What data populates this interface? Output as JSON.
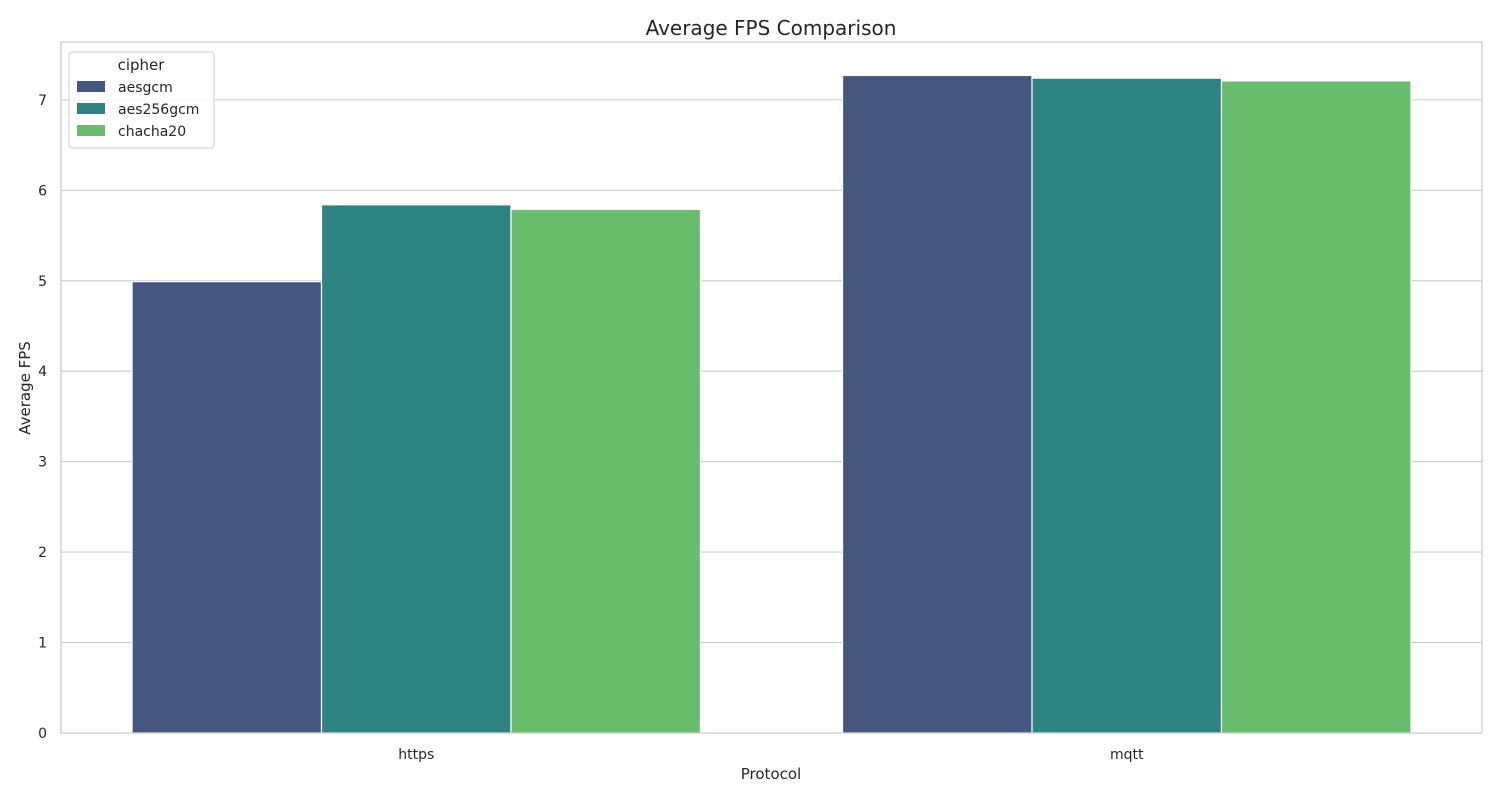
{
  "chart_data": {
    "type": "bar",
    "title": "Average FPS Comparison",
    "xlabel": "Protocol",
    "ylabel": "Average FPS",
    "categories": [
      "https",
      "mqtt"
    ],
    "series": [
      {
        "name": "aesgcm",
        "values": [
          4.99,
          7.27
        ],
        "color": "#45577f"
      },
      {
        "name": "aes256gcm",
        "values": [
          5.84,
          7.24
        ],
        "color": "#2d837f"
      },
      {
        "name": "chacha20",
        "values": [
          5.79,
          7.21
        ],
        "color": "#6abc6d"
      }
    ],
    "ylim": [
      0,
      7.64
    ],
    "yticks": [
      "0",
      "1",
      "2",
      "3",
      "4",
      "5",
      "6",
      "7"
    ],
    "grid": "horizontal",
    "legend": {
      "title": "cipher",
      "placement": "top-left"
    }
  }
}
